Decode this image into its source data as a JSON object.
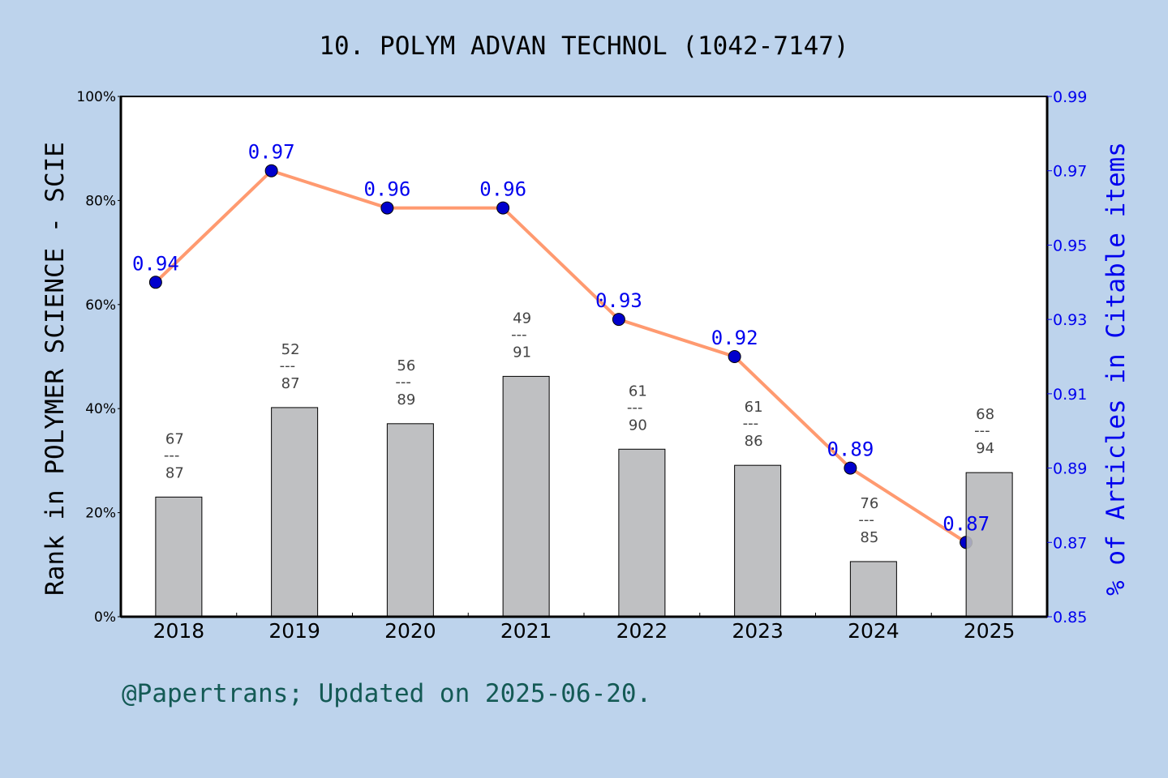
{
  "chart_data": {
    "type": "bar+line",
    "title": "10. POLYM ADVAN TECHNOL (1042-7147)",
    "categories": [
      "2018",
      "2019",
      "2020",
      "2021",
      "2022",
      "2023",
      "2024",
      "2025"
    ],
    "ranks": [
      {
        "rank": 67,
        "total": 87
      },
      {
        "rank": 52,
        "total": 87
      },
      {
        "rank": 56,
        "total": 89
      },
      {
        "rank": 49,
        "total": 91
      },
      {
        "rank": 61,
        "total": 90
      },
      {
        "rank": 61,
        "total": 86
      },
      {
        "rank": 76,
        "total": 85
      },
      {
        "rank": 68,
        "total": 94
      }
    ],
    "bar_values_percent": [
      23.0,
      40.2,
      37.1,
      46.2,
      32.2,
      29.1,
      10.6,
      27.7
    ],
    "line_values": [
      0.94,
      0.97,
      0.96,
      0.96,
      0.93,
      0.92,
      0.89,
      0.87
    ],
    "line_labels": [
      "0.94",
      "0.97",
      "0.96",
      "0.96",
      "0.93",
      "0.92",
      "0.89",
      "0.87"
    ],
    "ylabel_left": "Rank in POLYMER SCIENCE - SCIE",
    "ylabel_right": "% of Articles in Citable items",
    "ylim_left": [
      0,
      100
    ],
    "ylim_right": [
      0.85,
      0.99
    ],
    "left_ticks": [
      "0%",
      "20%",
      "40%",
      "60%",
      "80%",
      "100%"
    ],
    "right_ticks": [
      "0.85",
      "0.87",
      "0.89",
      "0.91",
      "0.93",
      "0.95",
      "0.97",
      "0.99"
    ],
    "grid": false,
    "colors": {
      "bar": "#b8b9bb",
      "line": "#ff9a70",
      "point": "#0000cc",
      "right_axis": "#0000ee",
      "background": "#bdd3ec",
      "footer": "#145a55"
    }
  },
  "footer": "@Papertrans; Updated on 2025-06-20."
}
